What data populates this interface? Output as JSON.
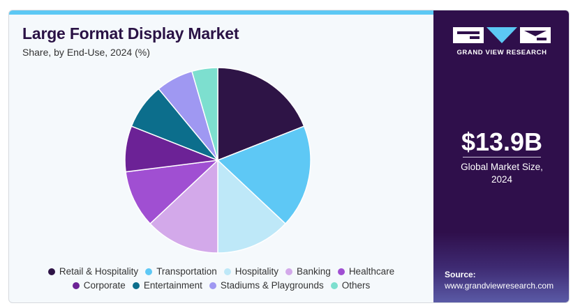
{
  "title": "Large Format Display Market",
  "subtitle": "Share, by End-Use, 2024 (%)",
  "brand": {
    "name": "GRAND VIEW RESEARCH",
    "colors": {
      "panel": "#2f0f4b",
      "accent": "#5cc8f4"
    }
  },
  "stat": {
    "value": "$13.9B",
    "label": "Global Market Size, 2024"
  },
  "source": {
    "label": "Source:",
    "url": "www.grandviewresearch.com"
  },
  "chart_data": {
    "type": "pie",
    "title": "Large Format Display Market",
    "subtitle": "Share, by End-Use, 2024 (%)",
    "legend_position": "bottom",
    "slices": [
      {
        "label": "Retail & Hospitality",
        "value": 19,
        "color": "#2e1446"
      },
      {
        "label": "Transportation",
        "value": 18,
        "color": "#5ec8f5"
      },
      {
        "label": "Hospitality",
        "value": 13,
        "color": "#bee8f8"
      },
      {
        "label": "Banking",
        "value": 13,
        "color": "#d3a9ea"
      },
      {
        "label": "Healthcare",
        "value": 10,
        "color": "#a04fd2"
      },
      {
        "label": "Corporate",
        "value": 8,
        "color": "#6c2296"
      },
      {
        "label": "Entertainment",
        "value": 8,
        "color": "#0c6e8c"
      },
      {
        "label": "Stadiums & Playgrounds",
        "value": 6.5,
        "color": "#9f98f2"
      },
      {
        "label": "Others",
        "value": 4.5,
        "color": "#7ddfcf"
      }
    ]
  }
}
